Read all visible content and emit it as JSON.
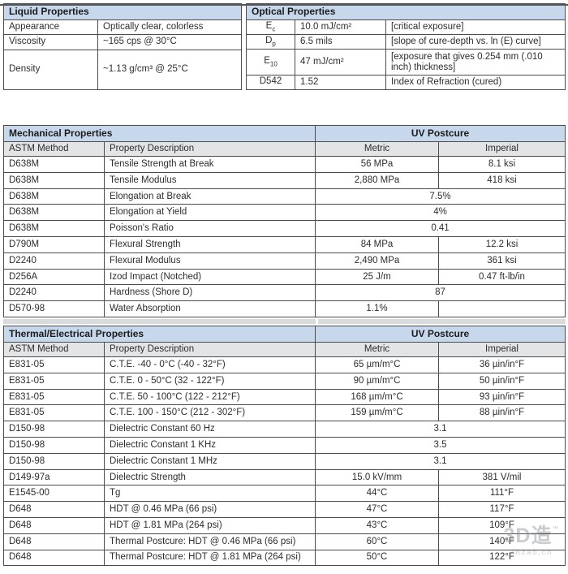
{
  "liquid": {
    "title": "Liquid Properties",
    "rows": [
      {
        "label": "Appearance",
        "value": "Optically clear, colorless"
      },
      {
        "label": "Viscosity",
        "value": "~165 cps @ 30°C"
      },
      {
        "label": "Density",
        "value": "~1.13 g/cm³ @ 25°C"
      }
    ]
  },
  "optical": {
    "title": "Optical Properties",
    "rows": [
      {
        "sym": "E",
        "sub": "c",
        "value": "10.0 mJ/cm²",
        "note": "[critical exposure]"
      },
      {
        "sym": "D",
        "sub": "p",
        "value": "6.5 mils",
        "note": "[slope of cure-depth vs. ln (E) curve]"
      },
      {
        "sym": "E",
        "sub": "10",
        "value": "47 mJ/cm²",
        "note": "[exposure that gives 0.254 mm (.010 inch) thickness]"
      },
      {
        "sym": "D542",
        "sub": "",
        "value": "1.52",
        "note": "Index of Refraction (cured)"
      }
    ]
  },
  "mech": {
    "title": "Mechanical Properties",
    "condition": "UV Postcure",
    "columns": [
      "ASTM Method",
      "Property Description",
      "Metric",
      "Imperial"
    ],
    "rows": [
      {
        "method": "D638M",
        "property": "Tensile Strength at Break",
        "metric": "56 MPa",
        "imperial": "8.1 ksi"
      },
      {
        "method": "D638M",
        "property": "Tensile Modulus",
        "metric": "2,880 MPa",
        "imperial": "418 ksi"
      },
      {
        "method": "D638M",
        "property": "Elongation at Break",
        "value": "7.5%"
      },
      {
        "method": "D638M",
        "property": "Elongation at Yield",
        "value": "4%"
      },
      {
        "method": "D638M",
        "property": "Poisson's Ratio",
        "value": "0.41"
      },
      {
        "method": "D790M",
        "property": "Flexural Strength",
        "metric": "84 MPa",
        "imperial": "12.2 ksi"
      },
      {
        "method": "D2240",
        "property": "Flexural Modulus",
        "metric": "2,490 MPa",
        "imperial": "361 ksi"
      },
      {
        "method": "D256A",
        "property": "Izod Impact (Notched)",
        "metric": "25 J/m",
        "imperial": "0.47 ft-lb/in"
      },
      {
        "method": "D2240",
        "property": "Hardness (Shore D)",
        "value": "87"
      },
      {
        "method": "D570-98",
        "property": "Water Absorption",
        "metric": "1.1%",
        "imperial": ""
      }
    ]
  },
  "thermal": {
    "title": "Thermal/Electrical Properties",
    "condition": "UV Postcure",
    "columns": [
      "ASTM Method",
      "Property Description",
      "Metric",
      "Imperial"
    ],
    "rows": [
      {
        "method": "E831-05",
        "property": "C.T.E. -40 - 0°C (-40 - 32°F)",
        "metric": "65 µm/m°C",
        "imperial": "36 µin/in°F"
      },
      {
        "method": "E831-05",
        "property": "C.T.E. 0 - 50°C (32 - 122°F)",
        "metric": "90 µm/m°C",
        "imperial": "50 µin/in°F"
      },
      {
        "method": "E831-05",
        "property": "C.T.E. 50 - 100°C (122 - 212°F)",
        "metric": "168 µm/m°C",
        "imperial": "93 µin/in°F"
      },
      {
        "method": "E831-05",
        "property": "C.T.E. 100 - 150°C (212 - 302°F)",
        "metric": "159 µm/m°C",
        "imperial": "88 µin/in°F"
      },
      {
        "method": "D150-98",
        "property": "Dielectric Constant 60 Hz",
        "value": "3.1"
      },
      {
        "method": "D150-98",
        "property": "Dielectric Constant 1 KHz",
        "value": "3.5"
      },
      {
        "method": "D150-98",
        "property": "Dielectric Constant 1 MHz",
        "value": "3.1"
      },
      {
        "method": "D149-97a",
        "property": "Dielectric Strength",
        "metric": "15.0 kV/mm",
        "imperial": "381 V/mil"
      },
      {
        "method": "E1545-00",
        "property": "Tg",
        "metric": "44°C",
        "imperial": "111°F"
      },
      {
        "method": "D648",
        "property": "HDT @ 0.46 MPa (66 psi)",
        "metric": "47°C",
        "imperial": "117°F"
      },
      {
        "method": "D648",
        "property": "HDT @ 1.81 MPa (264 psi)",
        "metric": "43°C",
        "imperial": "109°F"
      },
      {
        "method": "D648",
        "property": "Thermal Postcure: HDT @ 0.46 MPa (66 psi)",
        "metric": "60°C",
        "imperial": "140°F"
      },
      {
        "method": "D648",
        "property": "Thermal Postcure: HDT @ 1.81 MPa (264 psi)",
        "metric": "50°C",
        "imperial": "122°F"
      }
    ]
  },
  "watermark": {
    "title": "3D造",
    "tm": "™",
    "domain": "3dzao.cn"
  },
  "colors": {
    "section_header_bg": "#c8d8ec",
    "subheader_bg": "#e2e4e6",
    "spacer_bg": "#d8dadc",
    "border": "#4c4c4c"
  }
}
